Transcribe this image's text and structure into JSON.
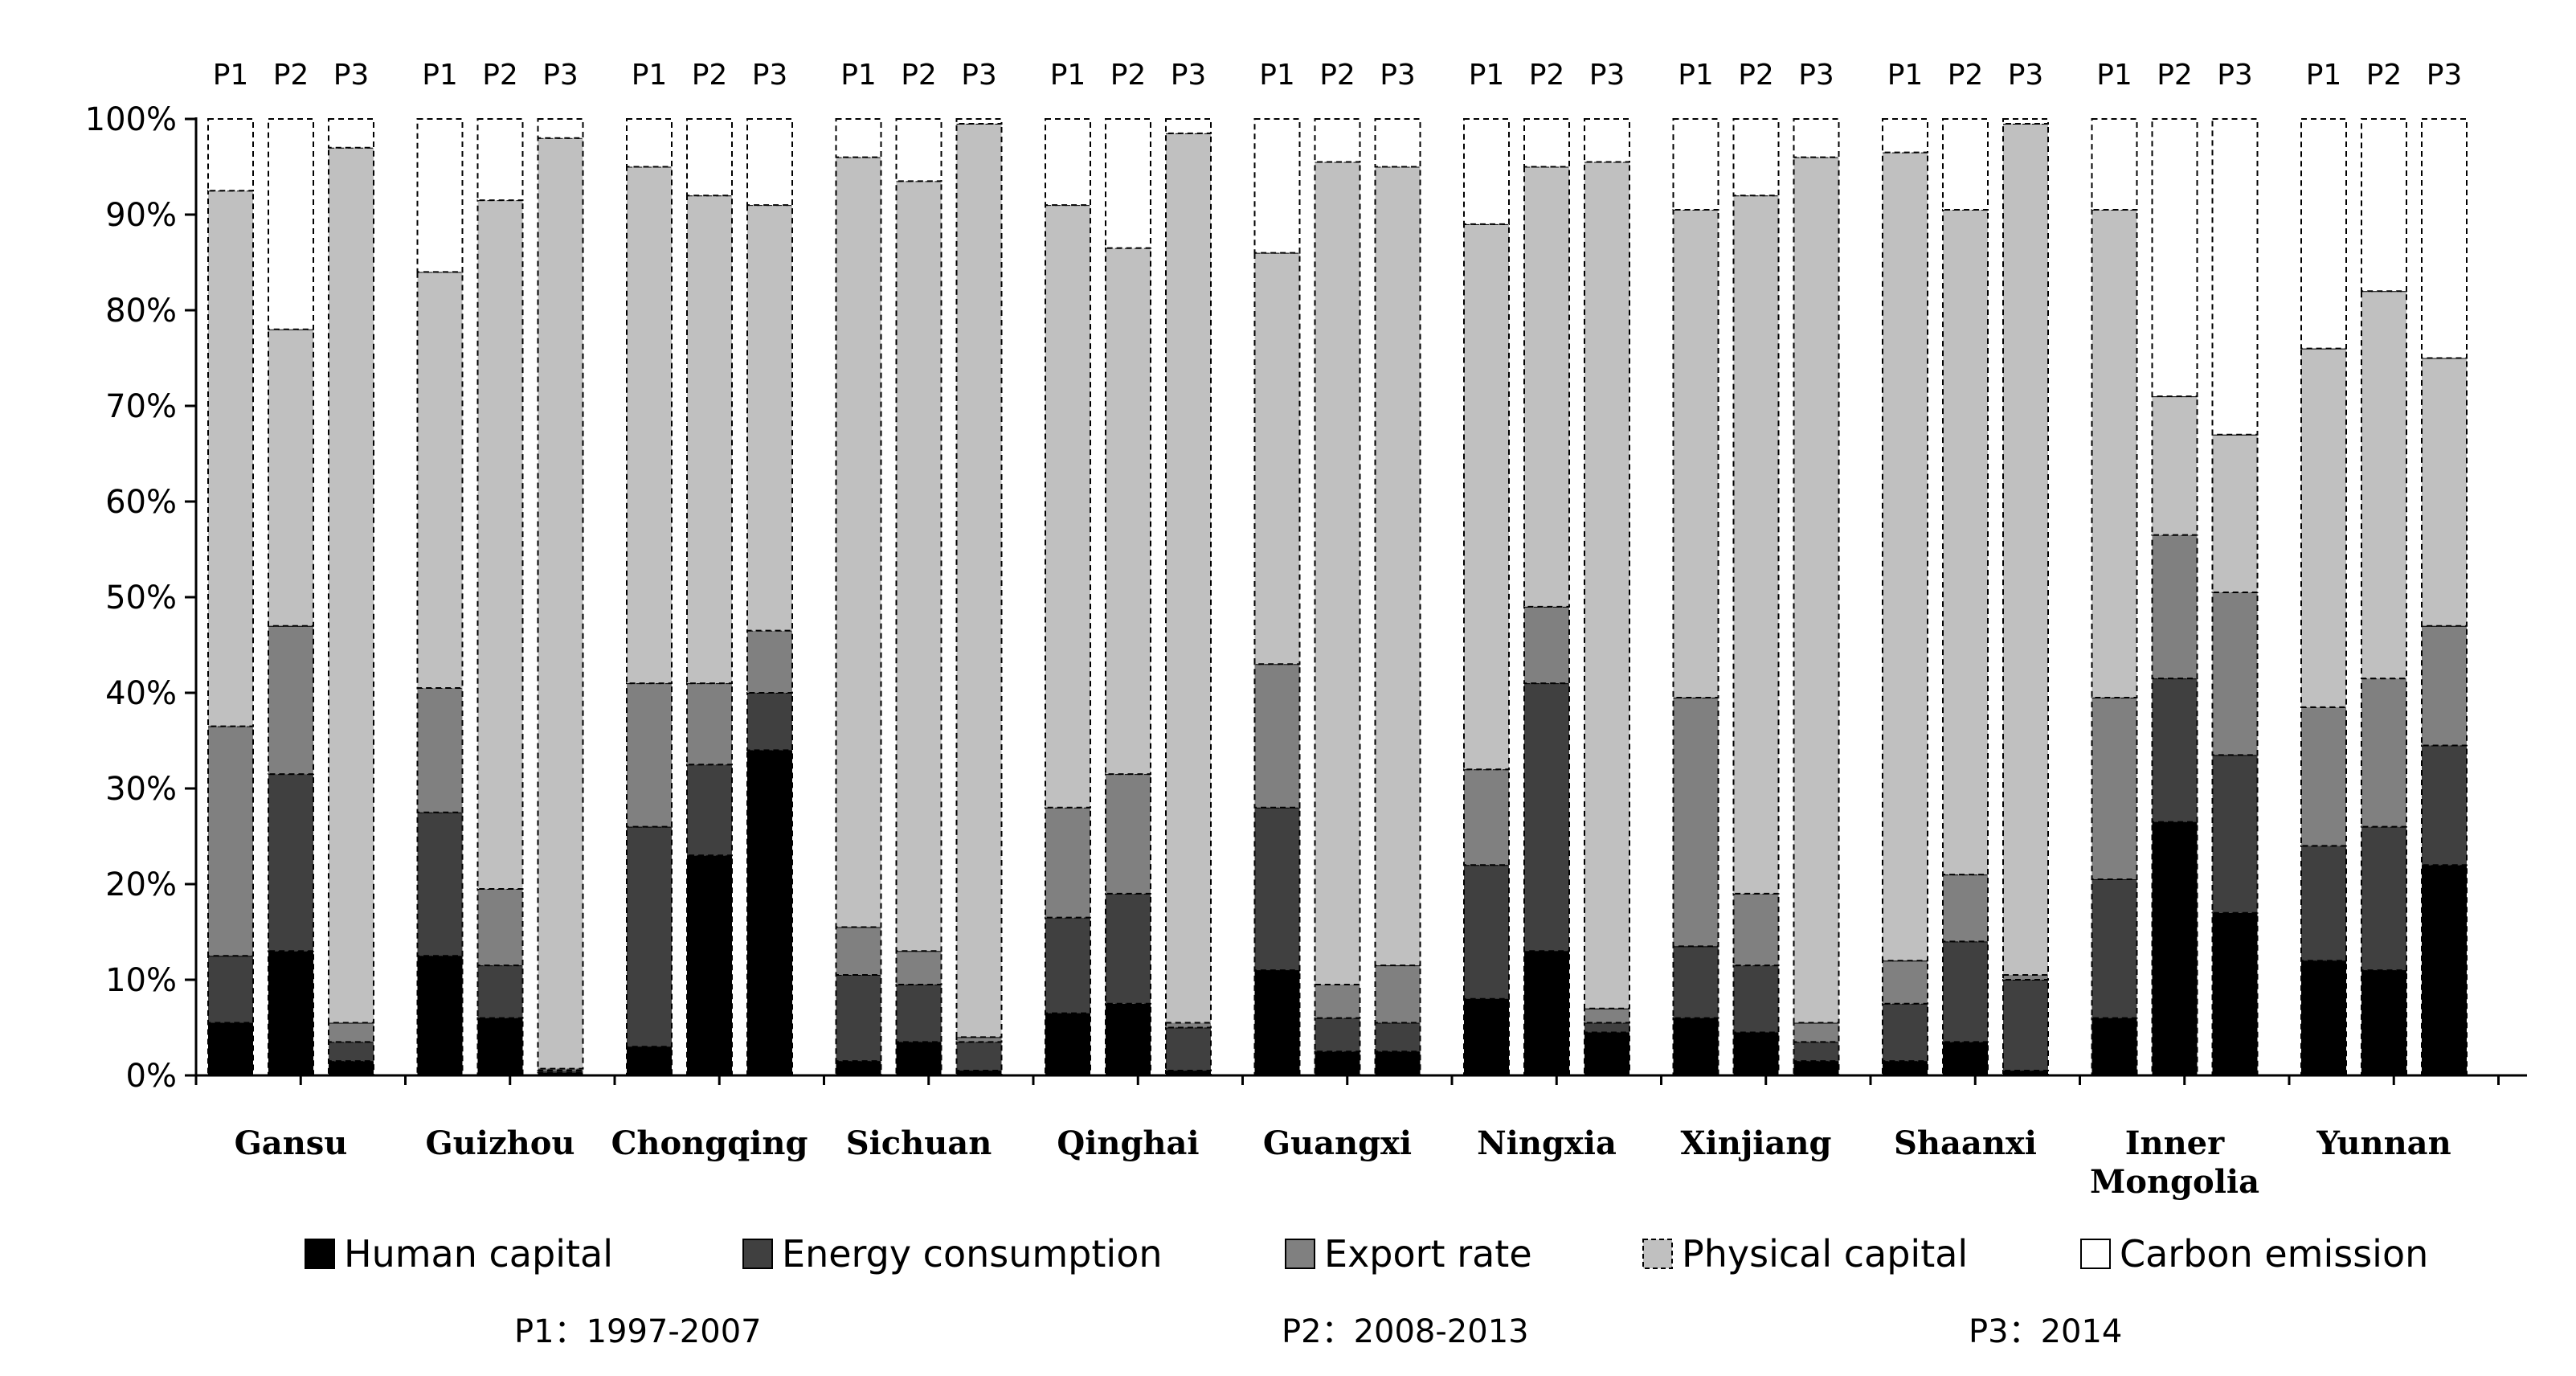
{
  "chart_data": {
    "type": "bar",
    "stacked": true,
    "normalized": true,
    "ylim": [
      0,
      100
    ],
    "yticks": [
      "0%",
      "10%",
      "20%",
      "30%",
      "40%",
      "50%",
      "60%",
      "70%",
      "80%",
      "90%",
      "100%"
    ],
    "periods": [
      "P1",
      "P2",
      "P3"
    ],
    "components": [
      "Human capital",
      "Energy consumption",
      "Export rate",
      "Physical capital",
      "Carbon emission"
    ],
    "colors": [
      "#000000",
      "#404040",
      "#808080",
      "#c0c0c0",
      "#ffffff"
    ],
    "regions": [
      {
        "name": "Gansu",
        "bars": [
          [
            5.5,
            7,
            24,
            56,
            7.5
          ],
          [
            13,
            18.5,
            15.5,
            31,
            22
          ],
          [
            1.5,
            2,
            2,
            91.5,
            3
          ]
        ]
      },
      {
        "name": "Guizhou",
        "bars": [
          [
            12.5,
            15,
            13,
            43.5,
            16
          ],
          [
            6,
            5.5,
            8,
            72,
            8.5
          ],
          [
            0.3,
            0.2,
            0.2,
            97.3,
            2
          ]
        ]
      },
      {
        "name": "Chongqing",
        "bars": [
          [
            3,
            23,
            15,
            54,
            5
          ],
          [
            23,
            9.5,
            8.5,
            51,
            8
          ],
          [
            34,
            6,
            6.5,
            44.5,
            9
          ]
        ]
      },
      {
        "name": "Sichuan",
        "bars": [
          [
            1.5,
            9,
            5,
            80.5,
            4
          ],
          [
            3.5,
            6,
            3.5,
            80.5,
            6.5
          ],
          [
            0.5,
            3,
            0.5,
            95.5,
            0.5
          ]
        ]
      },
      {
        "name": "Qinghai",
        "bars": [
          [
            6.5,
            10,
            11.5,
            63,
            9
          ],
          [
            7.5,
            11.5,
            12.5,
            55,
            13.5
          ],
          [
            0.5,
            4.5,
            0.5,
            93,
            1.5
          ]
        ]
      },
      {
        "name": "Guangxi",
        "bars": [
          [
            11,
            17,
            15,
            43,
            14
          ],
          [
            2.5,
            3.5,
            3.5,
            86,
            4.5
          ],
          [
            2.5,
            3,
            6,
            83.5,
            5
          ]
        ]
      },
      {
        "name": "Ningxia",
        "bars": [
          [
            8,
            14,
            10,
            57,
            11
          ],
          [
            13,
            28,
            8,
            46,
            5
          ],
          [
            4.5,
            1,
            1.5,
            88.5,
            4.5
          ]
        ]
      },
      {
        "name": "Xinjiang",
        "bars": [
          [
            6,
            7.5,
            26,
            51,
            9.5
          ],
          [
            4.5,
            7,
            7.5,
            73,
            8
          ],
          [
            1.5,
            2,
            2,
            90.5,
            4
          ]
        ]
      },
      {
        "name": "Shaanxi",
        "bars": [
          [
            1.5,
            6,
            4.5,
            84.5,
            3.5
          ],
          [
            3.5,
            10.5,
            7,
            69.5,
            9.5
          ],
          [
            0.5,
            9.5,
            0.5,
            89,
            0.5
          ]
        ]
      },
      {
        "name": "Inner Mongolia",
        "bars": [
          [
            6,
            14.5,
            19,
            51,
            9.5
          ],
          [
            26.5,
            15,
            15,
            14.5,
            29
          ],
          [
            17,
            16.5,
            17,
            16.5,
            33
          ]
        ]
      },
      {
        "name": "Yunnan",
        "bars": [
          [
            12,
            12,
            14.5,
            37.5,
            24
          ],
          [
            11,
            15,
            15.5,
            40.5,
            18
          ],
          [
            22,
            12.5,
            12.5,
            28,
            25
          ]
        ]
      }
    ],
    "region_labels": [
      [
        "Gansu"
      ],
      [
        "Guizhou"
      ],
      [
        "Chongqing"
      ],
      [
        "Sichuan"
      ],
      [
        "Qinghai"
      ],
      [
        "Guangxi"
      ],
      [
        "Ningxia"
      ],
      [
        "Xinjiang"
      ],
      [
        "Shaanxi"
      ],
      [
        "Inner",
        "Mongolia"
      ],
      [
        "Yunnan"
      ]
    ],
    "legend": [
      "Human capital",
      "Energy consumption",
      "Export rate",
      "Physical capital",
      "Carbon emission"
    ],
    "period_notes": [
      "P1：1997-2007",
      "P2：2008-2013",
      "P3：2014"
    ]
  }
}
